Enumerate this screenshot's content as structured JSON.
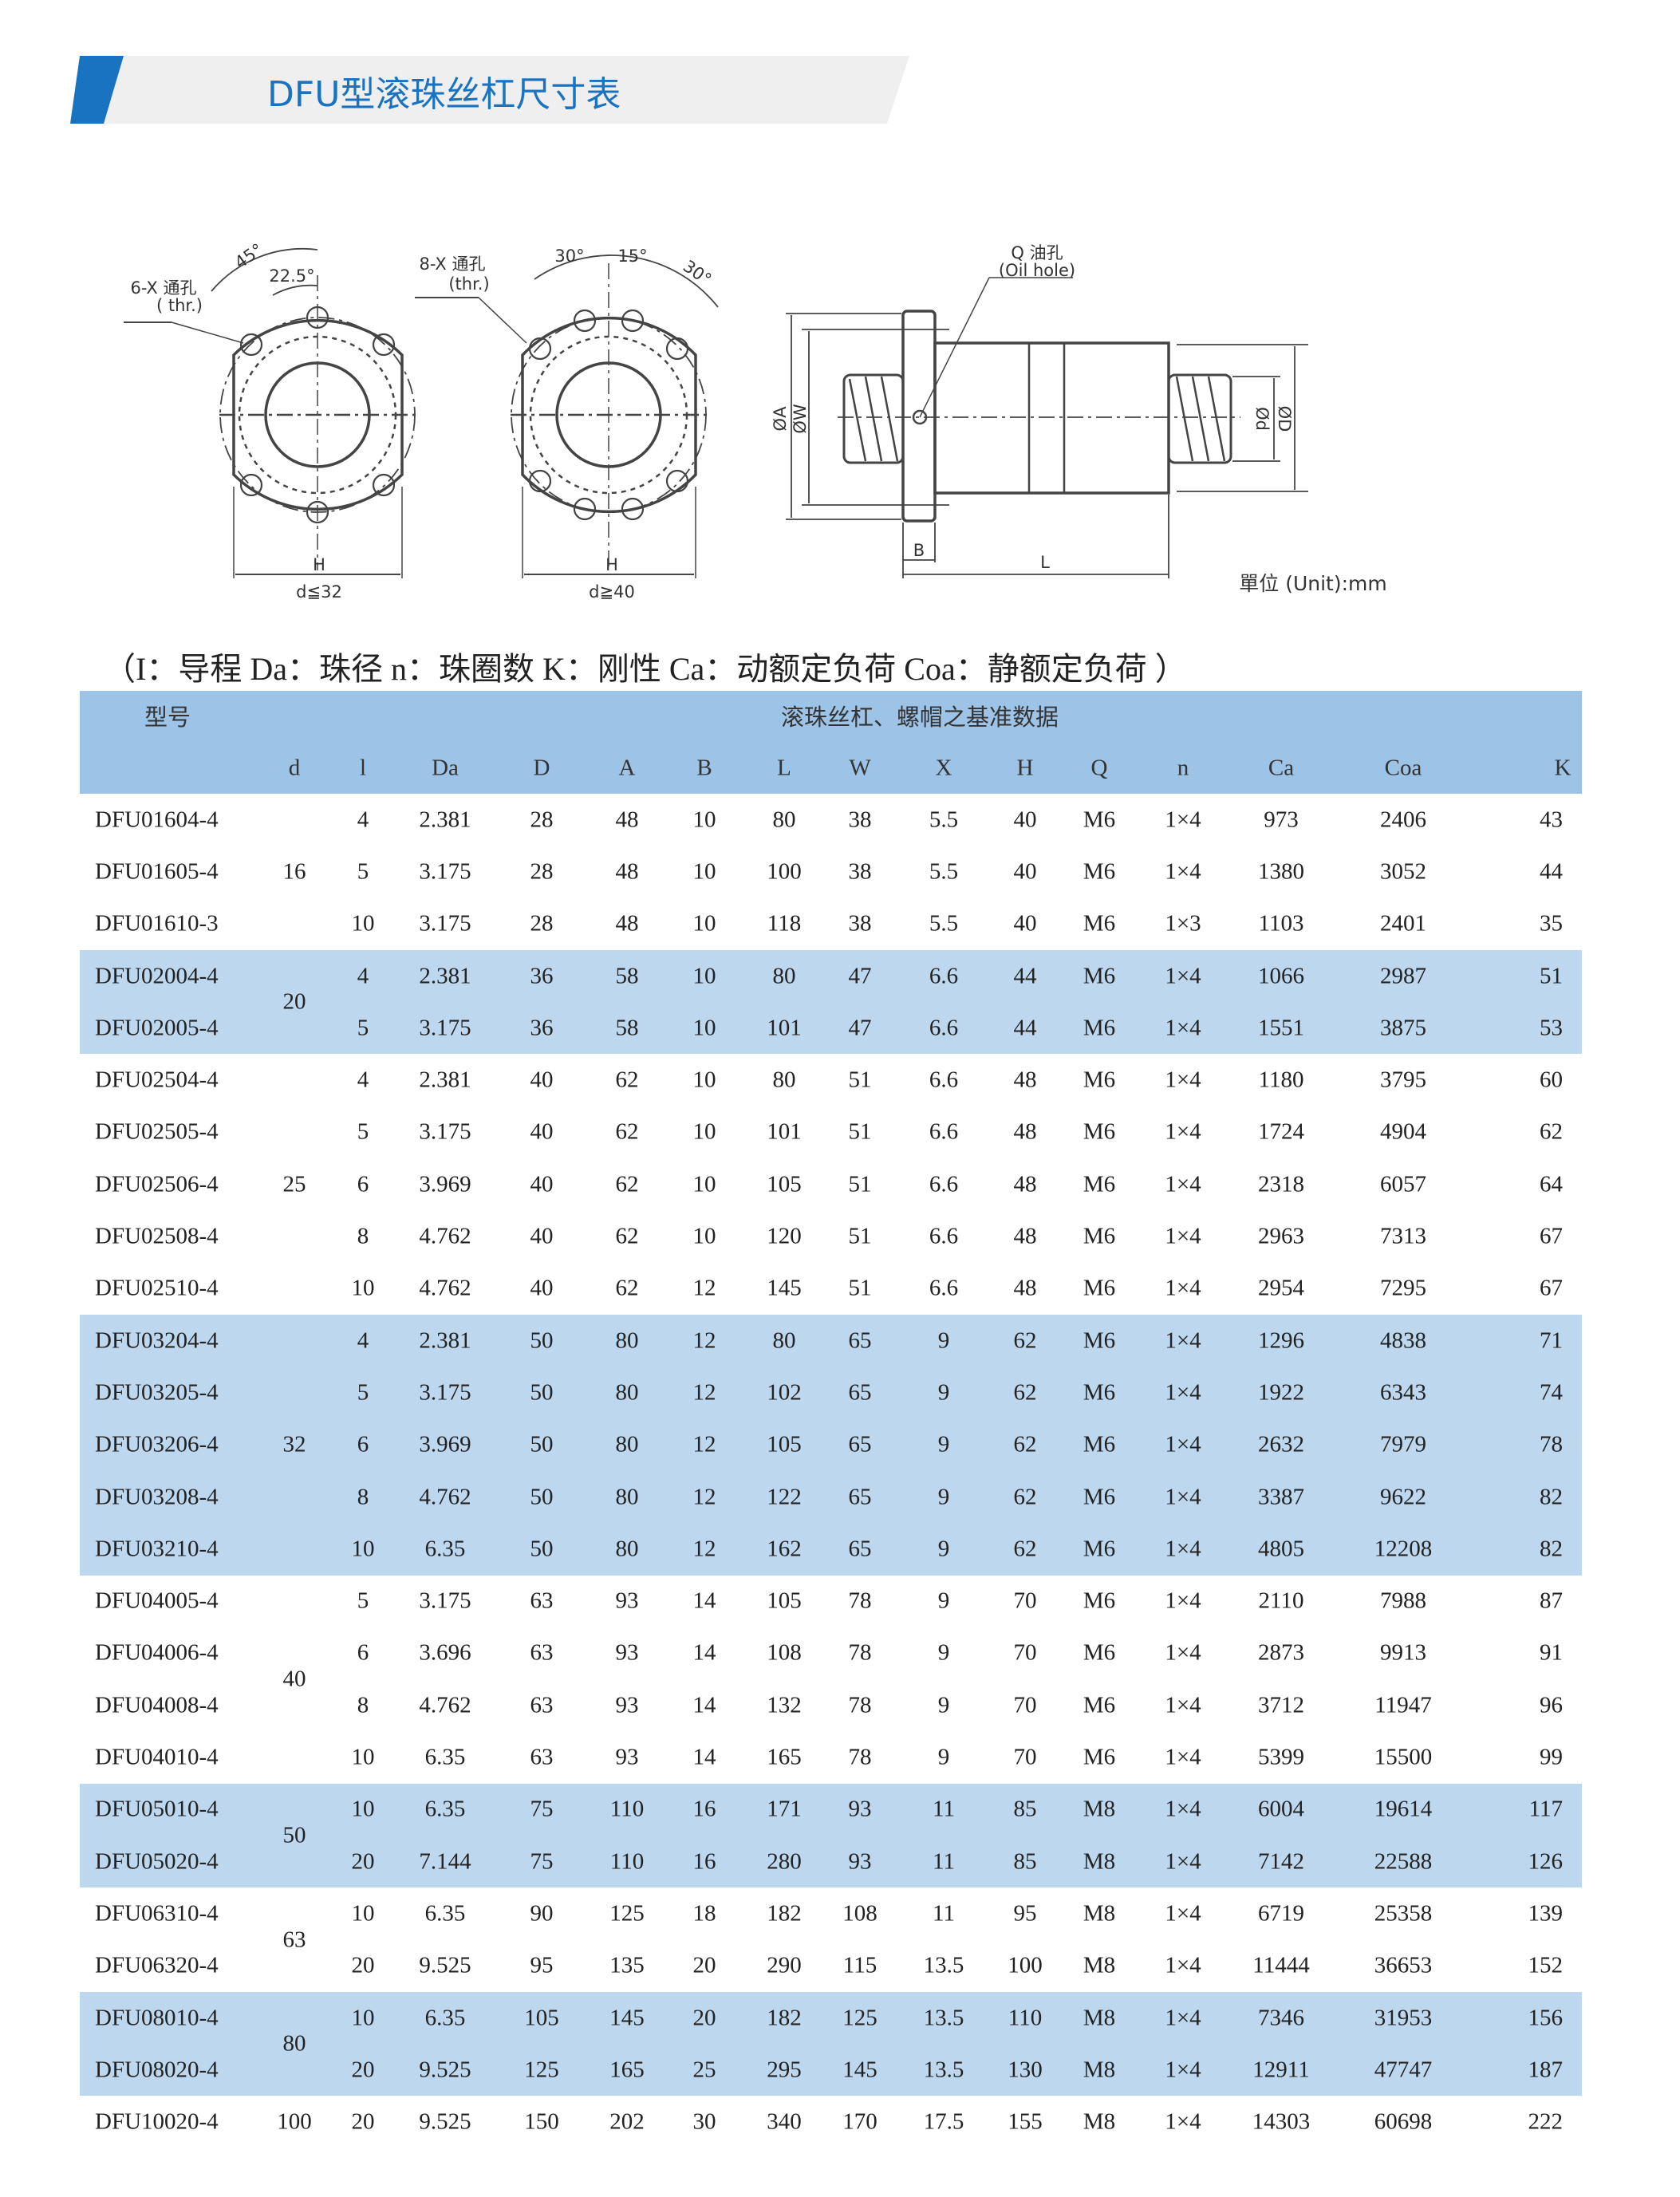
{
  "header": {
    "title": "DFU型滚珠丝杠尺寸表",
    "accent_color": "#1a73c1",
    "banner_color": "#efefef"
  },
  "diagrams": {
    "left": {
      "hole_label": "6-X 通孔",
      "thr_label": "( thr.)",
      "angle1": "45°",
      "angle2": "22.5°",
      "width_label": "H",
      "condition": "d≦32"
    },
    "right": {
      "hole_label": "8-X 通孔",
      "thr_label": "(thr.)",
      "angle1": "30°",
      "angle2": "15°",
      "angle3": "30°",
      "width_label": "H",
      "condition": "d≧40"
    },
    "side": {
      "oil_label": "Q 油孔",
      "oil_label_en": "(Oil hole)",
      "dim_A": "ØA",
      "dim_W": "ØW",
      "dim_d": "Ød",
      "dim_D": "ØD",
      "dim_B": "B",
      "dim_L": "L",
      "unit": "單位 (Unit):mm"
    }
  },
  "legend": "（I：导程 Da：珠径 n：珠圈数 K：刚性 Ca：动额定负荷 Coa：静额定负荷 ）",
  "table": {
    "model_header": "型号",
    "group_header": "滚珠丝杠、螺帽之基准数据",
    "columns": [
      "d",
      "l",
      "Da",
      "D",
      "A",
      "B",
      "L",
      "W",
      "X",
      "H",
      "Q",
      "n",
      "Ca",
      "Coa",
      "K"
    ],
    "header_color": "#9dc3e6",
    "band_color": "#bdd7ee",
    "groups": [
      {
        "d": "16",
        "shaded": false,
        "rows": [
          [
            "DFU01604-4",
            "4",
            "2.381",
            "28",
            "48",
            "10",
            "80",
            "38",
            "5.5",
            "40",
            "M6",
            "1×4",
            "973",
            "2406",
            "43"
          ],
          [
            "DFU01605-4",
            "5",
            "3.175",
            "28",
            "48",
            "10",
            "100",
            "38",
            "5.5",
            "40",
            "M6",
            "1×4",
            "1380",
            "3052",
            "44"
          ],
          [
            "DFU01610-3",
            "10",
            "3.175",
            "28",
            "48",
            "10",
            "118",
            "38",
            "5.5",
            "40",
            "M6",
            "1×3",
            "1103",
            "2401",
            "35"
          ]
        ]
      },
      {
        "d": "20",
        "shaded": true,
        "rows": [
          [
            "DFU02004-4",
            "4",
            "2.381",
            "36",
            "58",
            "10",
            "80",
            "47",
            "6.6",
            "44",
            "M6",
            "1×4",
            "1066",
            "2987",
            "51"
          ],
          [
            "DFU02005-4",
            "5",
            "3.175",
            "36",
            "58",
            "10",
            "101",
            "47",
            "6.6",
            "44",
            "M6",
            "1×4",
            "1551",
            "3875",
            "53"
          ]
        ]
      },
      {
        "d": "25",
        "shaded": false,
        "rows": [
          [
            "DFU02504-4",
            "4",
            "2.381",
            "40",
            "62",
            "10",
            "80",
            "51",
            "6.6",
            "48",
            "M6",
            "1×4",
            "1180",
            "3795",
            "60"
          ],
          [
            "DFU02505-4",
            "5",
            "3.175",
            "40",
            "62",
            "10",
            "101",
            "51",
            "6.6",
            "48",
            "M6",
            "1×4",
            "1724",
            "4904",
            "62"
          ],
          [
            "DFU02506-4",
            "6",
            "3.969",
            "40",
            "62",
            "10",
            "105",
            "51",
            "6.6",
            "48",
            "M6",
            "1×4",
            "2318",
            "6057",
            "64"
          ],
          [
            "DFU02508-4",
            "8",
            "4.762",
            "40",
            "62",
            "10",
            "120",
            "51",
            "6.6",
            "48",
            "M6",
            "1×4",
            "2963",
            "7313",
            "67"
          ],
          [
            "DFU02510-4",
            "10",
            "4.762",
            "40",
            "62",
            "12",
            "145",
            "51",
            "6.6",
            "48",
            "M6",
            "1×4",
            "2954",
            "7295",
            "67"
          ]
        ]
      },
      {
        "d": "32",
        "shaded": true,
        "rows": [
          [
            "DFU03204-4",
            "4",
            "2.381",
            "50",
            "80",
            "12",
            "80",
            "65",
            "9",
            "62",
            "M6",
            "1×4",
            "1296",
            "4838",
            "71"
          ],
          [
            "DFU03205-4",
            "5",
            "3.175",
            "50",
            "80",
            "12",
            "102",
            "65",
            "9",
            "62",
            "M6",
            "1×4",
            "1922",
            "6343",
            "74"
          ],
          [
            "DFU03206-4",
            "6",
            "3.969",
            "50",
            "80",
            "12",
            "105",
            "65",
            "9",
            "62",
            "M6",
            "1×4",
            "2632",
            "7979",
            "78"
          ],
          [
            "DFU03208-4",
            "8",
            "4.762",
            "50",
            "80",
            "12",
            "122",
            "65",
            "9",
            "62",
            "M6",
            "1×4",
            "3387",
            "9622",
            "82"
          ],
          [
            "DFU03210-4",
            "10",
            "6.35",
            "50",
            "80",
            "12",
            "162",
            "65",
            "9",
            "62",
            "M6",
            "1×4",
            "4805",
            "12208",
            "82"
          ]
        ]
      },
      {
        "d": "40",
        "shaded": false,
        "rows": [
          [
            "DFU04005-4",
            "5",
            "3.175",
            "63",
            "93",
            "14",
            "105",
            "78",
            "9",
            "70",
            "M6",
            "1×4",
            "2110",
            "7988",
            "87"
          ],
          [
            "DFU04006-4",
            "6",
            "3.696",
            "63",
            "93",
            "14",
            "108",
            "78",
            "9",
            "70",
            "M6",
            "1×4",
            "2873",
            "9913",
            "91"
          ],
          [
            "DFU04008-4",
            "8",
            "4.762",
            "63",
            "93",
            "14",
            "132",
            "78",
            "9",
            "70",
            "M6",
            "1×4",
            "3712",
            "11947",
            "96"
          ],
          [
            "DFU04010-4",
            "10",
            "6.35",
            "63",
            "93",
            "14",
            "165",
            "78",
            "9",
            "70",
            "M6",
            "1×4",
            "5399",
            "15500",
            "99"
          ]
        ]
      },
      {
        "d": "50",
        "shaded": true,
        "rows": [
          [
            "DFU05010-4",
            "10",
            "6.35",
            "75",
            "110",
            "16",
            "171",
            "93",
            "11",
            "85",
            "M8",
            "1×4",
            "6004",
            "19614",
            "117"
          ],
          [
            "DFU05020-4",
            "20",
            "7.144",
            "75",
            "110",
            "16",
            "280",
            "93",
            "11",
            "85",
            "M8",
            "1×4",
            "7142",
            "22588",
            "126"
          ]
        ]
      },
      {
        "d": "63",
        "shaded": false,
        "rows": [
          [
            "DFU06310-4",
            "10",
            "6.35",
            "90",
            "125",
            "18",
            "182",
            "108",
            "11",
            "95",
            "M8",
            "1×4",
            "6719",
            "25358",
            "139"
          ],
          [
            "DFU06320-4",
            "20",
            "9.525",
            "95",
            "135",
            "20",
            "290",
            "115",
            "13.5",
            "100",
            "M8",
            "1×4",
            "11444",
            "36653",
            "152"
          ]
        ]
      },
      {
        "d": "80",
        "shaded": true,
        "rows": [
          [
            "DFU08010-4",
            "10",
            "6.35",
            "105",
            "145",
            "20",
            "182",
            "125",
            "13.5",
            "110",
            "M8",
            "1×4",
            "7346",
            "31953",
            "156"
          ],
          [
            "DFU08020-4",
            "20",
            "9.525",
            "125",
            "165",
            "25",
            "295",
            "145",
            "13.5",
            "130",
            "M8",
            "1×4",
            "12911",
            "47747",
            "187"
          ]
        ]
      },
      {
        "d": "100",
        "shaded": false,
        "rows": [
          [
            "DFU10020-4",
            "20",
            "9.525",
            "150",
            "202",
            "30",
            "340",
            "170",
            "17.5",
            "155",
            "M8",
            "1×4",
            "14303",
            "60698",
            "222"
          ]
        ]
      }
    ]
  }
}
